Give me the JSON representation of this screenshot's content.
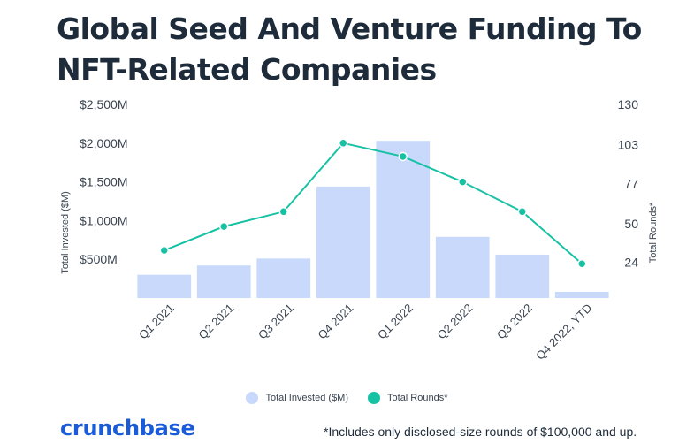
{
  "header": {
    "title_line1": "Global Seed And Venture Funding To",
    "title_line2": "NFT-Related Companies"
  },
  "chart_data": {
    "type": "bar+line",
    "title": "Global Seed And Venture Funding To NFT-Related Companies",
    "categories": [
      "Q1 2021",
      "Q2 2021",
      "Q3 2021",
      "Q4 2021",
      "Q1 2022",
      "Q2 2022",
      "Q3 2022",
      "Q4 2022, YTD"
    ],
    "left_axis": {
      "label": "Total Invested ($M)",
      "ticks": [
        "$2,500M",
        "$2,000M",
        "$1,500M",
        "$1,000M",
        "$500M"
      ],
      "range": [
        0,
        2500
      ]
    },
    "right_axis": {
      "label": "Total Rounds*",
      "ticks": [
        "130",
        "103",
        "77",
        "50",
        "24"
      ],
      "range": [
        0,
        130
      ]
    },
    "series": [
      {
        "name": "Total Invested ($M)",
        "type": "bar",
        "axis": "left",
        "color": "#c9d9fb",
        "values": [
          300,
          420,
          510,
          1440,
          2030,
          790,
          560,
          80
        ]
      },
      {
        "name": "Total Rounds*",
        "type": "line",
        "axis": "right",
        "color": "#17c1a4",
        "values": [
          32,
          48,
          58,
          104,
          95,
          78,
          58,
          23
        ]
      }
    ],
    "grid": false,
    "legend_position": "bottom"
  },
  "footer": {
    "logo": "crunchbase",
    "note": "*Includes only disclosed-size rounds of $100,000 and up."
  }
}
